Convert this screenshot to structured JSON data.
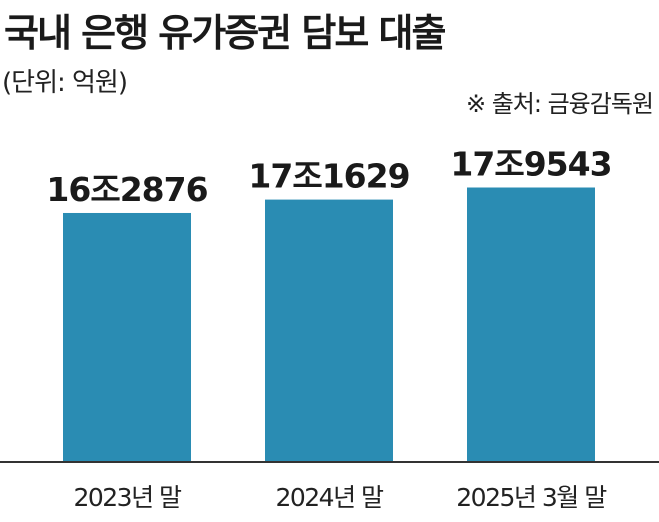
{
  "colors": {
    "bar": "#2a8cb3",
    "axis": "#333333",
    "text": "#1a1a1a"
  },
  "chart_data": {
    "type": "bar",
    "title": "국내 은행 유가증권 담보 대출",
    "unit": "(단위: 억원)",
    "source": "※ 출처: 금융감독원",
    "categories": [
      "2023년 말",
      "2024년 말",
      "2025년 3월 말"
    ],
    "values": [
      162876,
      171629,
      179543
    ],
    "value_labels": [
      "16조2876",
      "17조1629",
      "17조9543"
    ],
    "ylim": [
      0,
      225000
    ],
    "grid": false,
    "legend": "none"
  }
}
